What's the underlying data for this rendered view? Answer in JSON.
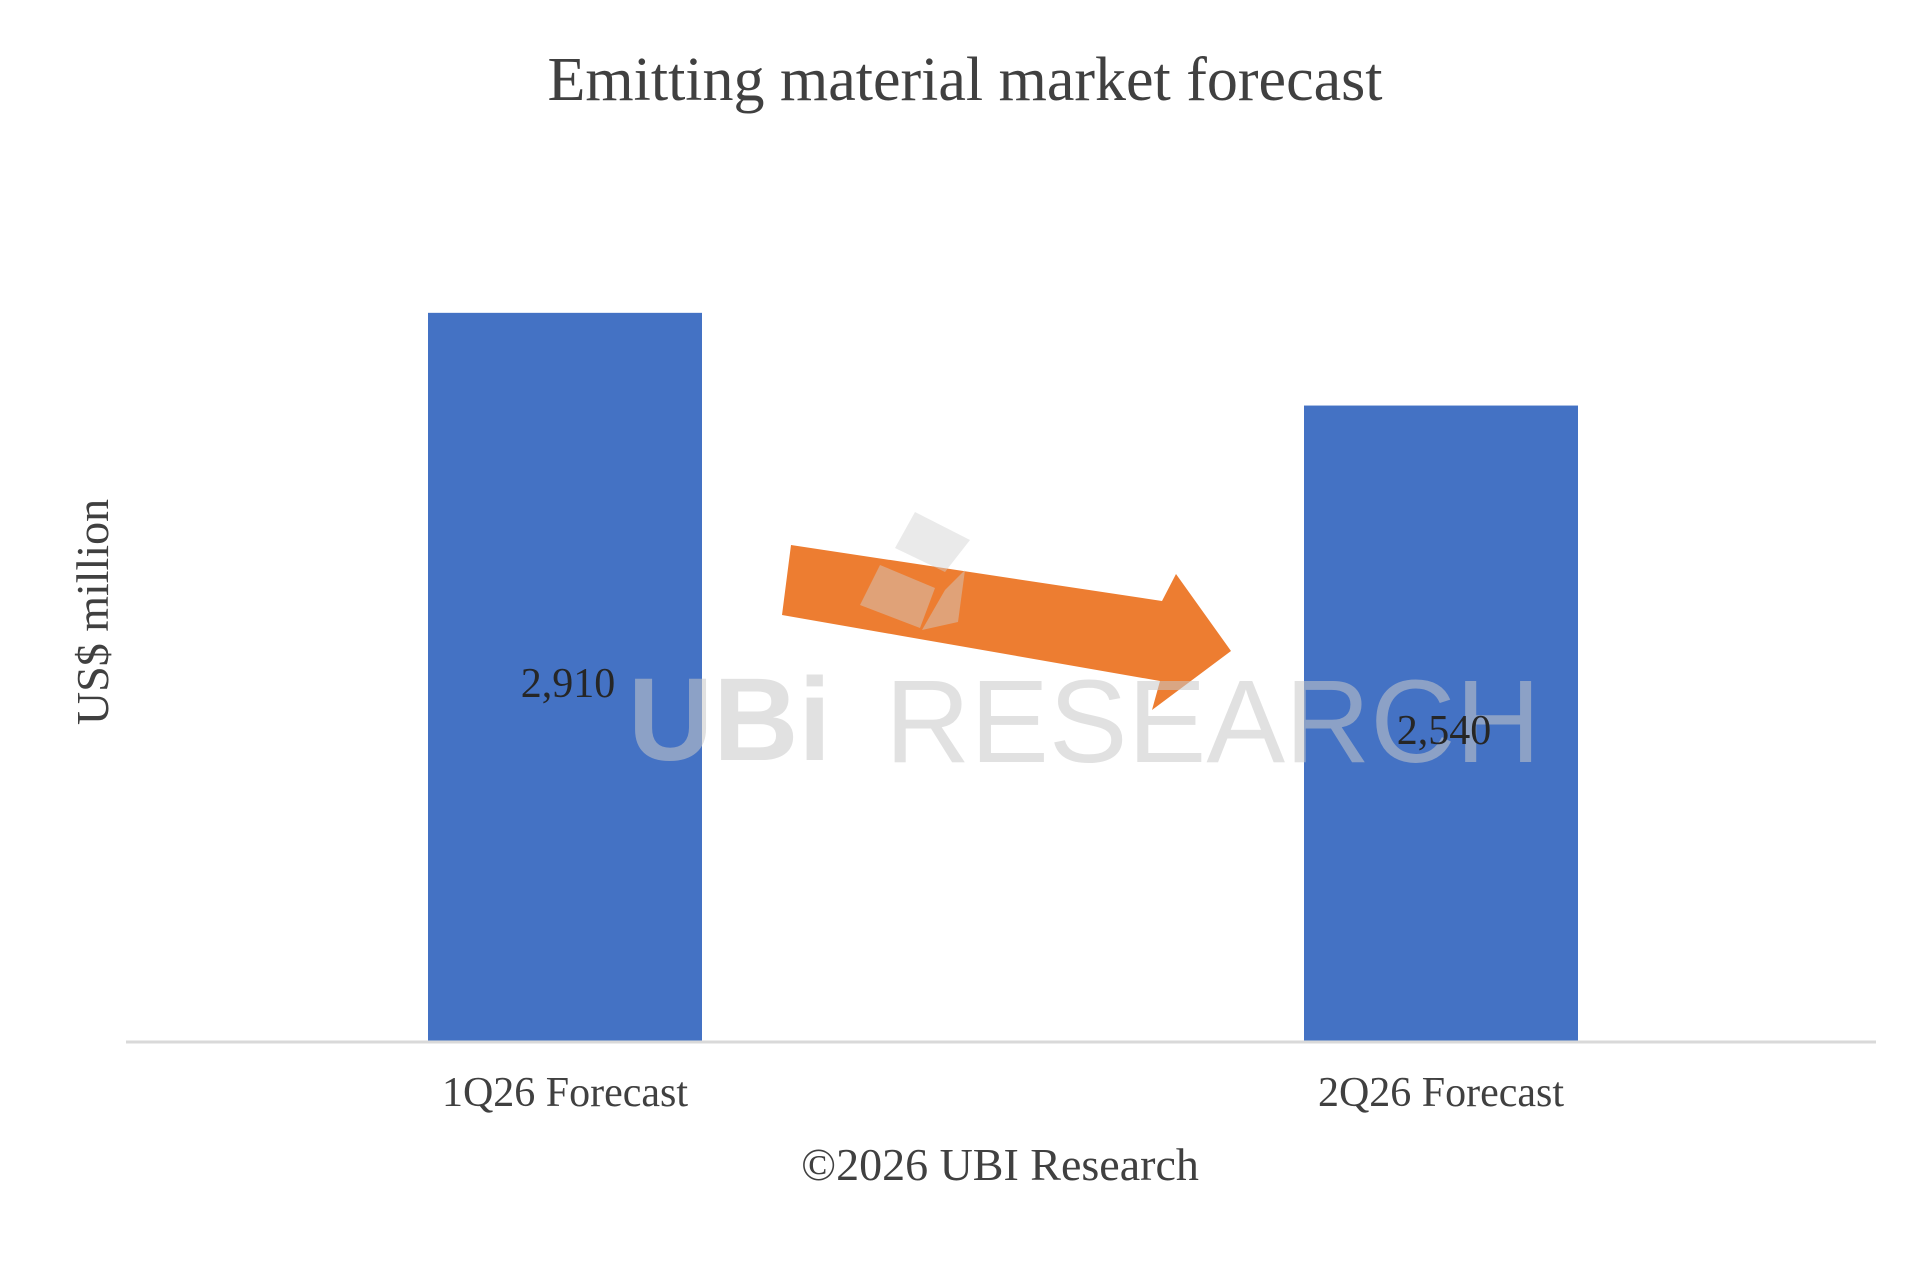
{
  "chart_data": {
    "type": "bar",
    "title": "Emitting material market forecast",
    "xlabel": "",
    "ylabel": "US$ million",
    "categories": [
      "1Q26 Forecast",
      "2Q26 Forecast"
    ],
    "values": [
      2910,
      2540
    ],
    "data_labels": [
      "2,910",
      "2,540"
    ],
    "ylim": [
      0,
      3500
    ],
    "grid": false,
    "legend": "none",
    "copyright": "©2026 UBI Research",
    "colors": {
      "bar": "#4472C4",
      "arrow": "#ED7D31",
      "baseline": "#D9D9D9",
      "text": "#404040",
      "watermark": "#C8C8C8"
    },
    "annotation": {
      "type": "arrow",
      "direction": "down-right",
      "from_category": "1Q26 Forecast",
      "to_category": "2Q26 Forecast"
    },
    "watermark": {
      "logo": "UBi",
      "text": "RESEARCH"
    }
  }
}
